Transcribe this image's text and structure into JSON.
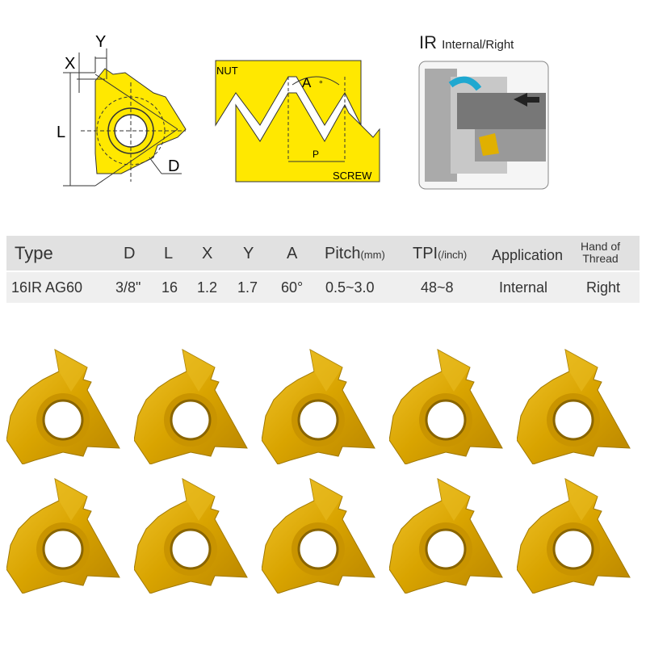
{
  "diagram_insert": {
    "labels": {
      "x": "X",
      "y": "Y",
      "l": "L",
      "d": "D"
    }
  },
  "diagram_thread": {
    "nut": "NUT",
    "screw": "SCREW",
    "angle": "A",
    "degree": "°",
    "pitch": "P"
  },
  "diagram_ir": {
    "title": "IR",
    "subtitle": "Internal/Right"
  },
  "colors": {
    "insert_yellow": "#ffe800",
    "gold": "#d9a400",
    "header_bg": "#e1e1e1",
    "row_bg": "#efefef"
  },
  "table": {
    "headers": {
      "type": "Type",
      "d": "D",
      "l": "L",
      "x": "X",
      "y": "Y",
      "a": "A",
      "pitch": "Pitch",
      "pitch_unit": "(mm)",
      "tpi": "TPI",
      "tpi_unit": "(/inch)",
      "application": "Application",
      "hand_1": "Hand of",
      "hand_2": "Thread"
    },
    "row": {
      "type": "16IR AG60",
      "d": "3/8\"",
      "l": "16",
      "x": "1.2",
      "y": "1.7",
      "a": "60°",
      "pitch": "0.5~3.0",
      "tpi": "48~8",
      "application": "Internal",
      "hand": "Right"
    }
  },
  "product_photo": {
    "insert_count": 10
  }
}
